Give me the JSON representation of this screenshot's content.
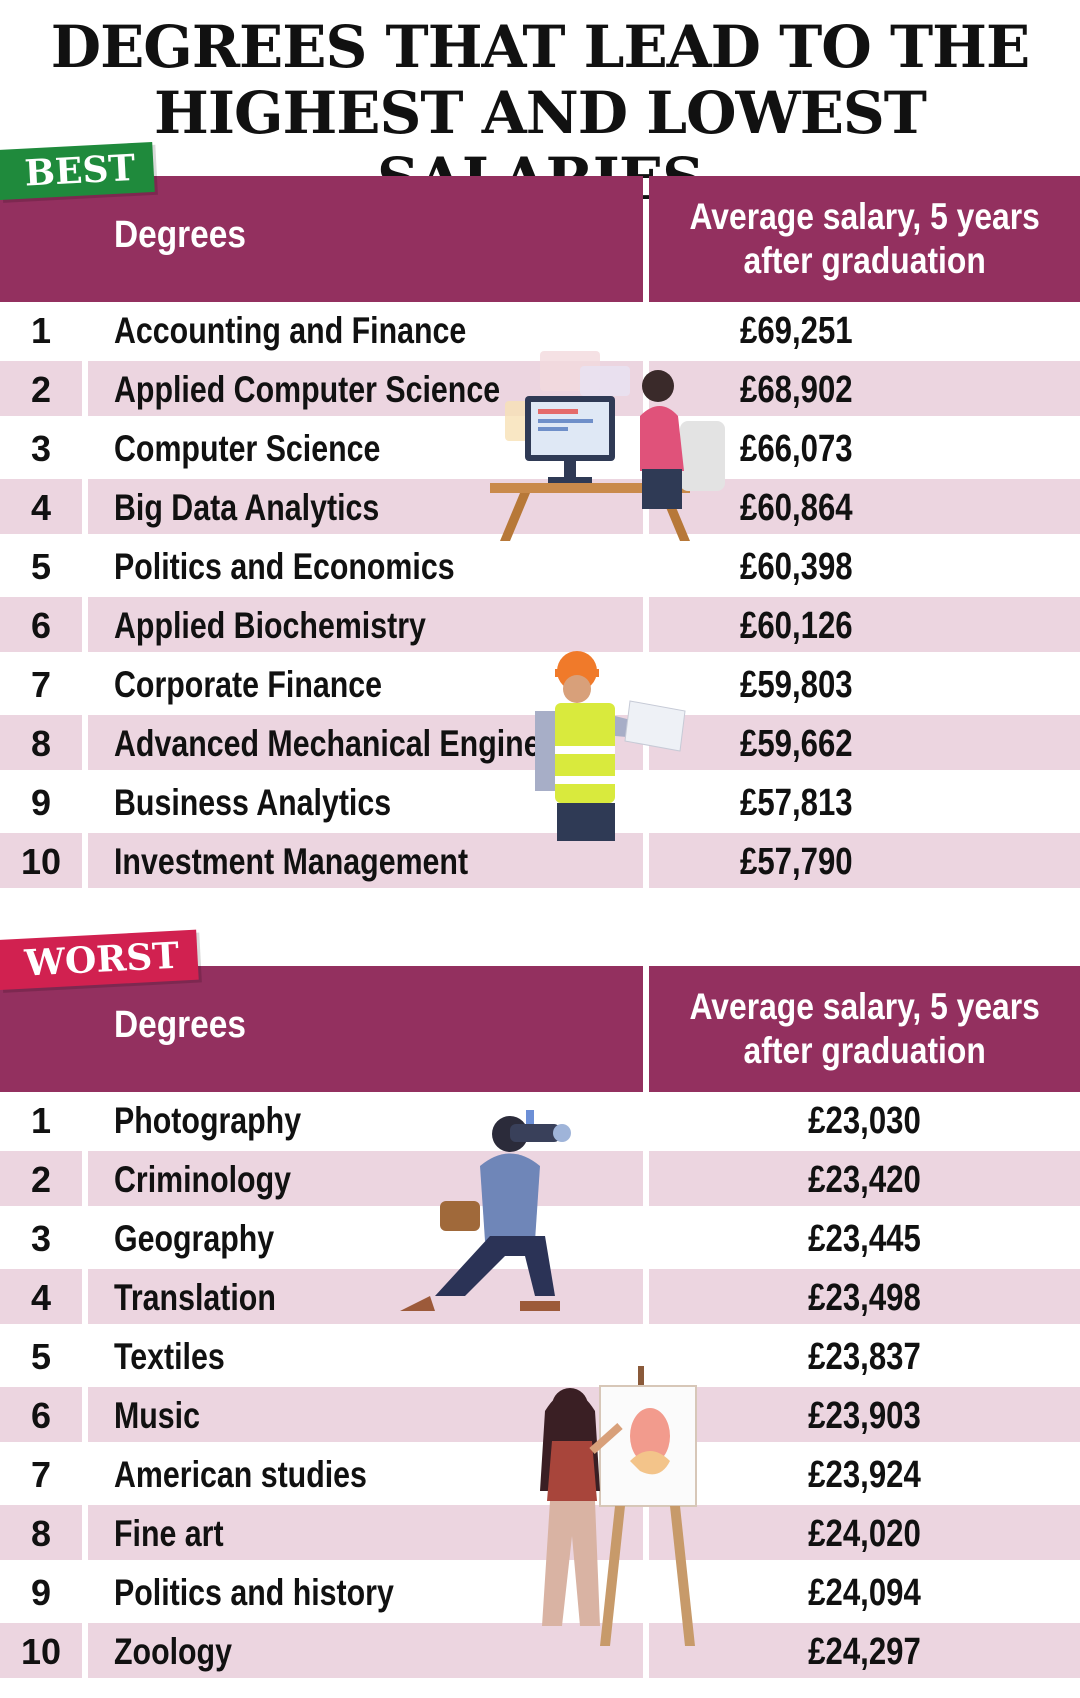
{
  "title_line1": "DEGREES THAT LEAD TO THE",
  "title_line2": "HIGHEST AND LOWEST SALARIES",
  "header": {
    "degrees_label": "Degrees",
    "salary_label_line1": "Average salary, 5 years",
    "salary_label_line2": "after graduation"
  },
  "best": {
    "badge": "BEST",
    "rows": [
      {
        "rank": "1",
        "degree": "Accounting and Finance",
        "salary": "£69,251"
      },
      {
        "rank": "2",
        "degree": "Applied Computer Science",
        "salary": "£68,902"
      },
      {
        "rank": "3",
        "degree": "Computer Science",
        "salary": "£66,073"
      },
      {
        "rank": "4",
        "degree": "Big Data Analytics",
        "salary": "£60,864"
      },
      {
        "rank": "5",
        "degree": "Politics and Economics",
        "salary": "£60,398"
      },
      {
        "rank": "6",
        "degree": "Applied Biochemistry",
        "salary": "£60,126"
      },
      {
        "rank": "7",
        "degree": "Corporate Finance",
        "salary": "£59,803"
      },
      {
        "rank": "8",
        "degree": "Advanced Mechanical Engineering",
        "salary": "£59,662"
      },
      {
        "rank": "9",
        "degree": "Business Analytics",
        "salary": "£57,813"
      },
      {
        "rank": "10",
        "degree": "Investment Management",
        "salary": "£57,790"
      }
    ]
  },
  "worst": {
    "badge": "WORST",
    "rows": [
      {
        "rank": "1",
        "degree": "Photography",
        "salary": "£23,030"
      },
      {
        "rank": "2",
        "degree": "Criminology",
        "salary": "£23,420"
      },
      {
        "rank": "3",
        "degree": "Geography",
        "salary": "£23,445"
      },
      {
        "rank": "4",
        "degree": "Translation",
        "salary": "£23,498"
      },
      {
        "rank": "5",
        "degree": "Textiles",
        "salary": "£23,837"
      },
      {
        "rank": "6",
        "degree": "Music",
        "salary": "£23,903"
      },
      {
        "rank": "7",
        "degree": "American studies",
        "salary": "£23,924"
      },
      {
        "rank": "8",
        "degree": "Fine art",
        "salary": "£24,020"
      },
      {
        "rank": "9",
        "degree": "Politics and history",
        "salary": "£24,094"
      },
      {
        "rank": "10",
        "degree": "Zoology",
        "salary": "£24,297"
      }
    ]
  },
  "chart_data": [
    {
      "type": "table",
      "title": "BEST",
      "columns": [
        "Degrees",
        "Average salary, 5 years after graduation"
      ],
      "categories": [
        "Accounting and Finance",
        "Applied Computer Science",
        "Computer Science",
        "Big Data Analytics",
        "Politics and Economics",
        "Applied Biochemistry",
        "Corporate Finance",
        "Advanced Mechanical Engineering",
        "Business Analytics",
        "Investment Management"
      ],
      "values": [
        69251,
        68902,
        66073,
        60864,
        60398,
        60126,
        59803,
        59662,
        57813,
        57790
      ]
    },
    {
      "type": "table",
      "title": "WORST",
      "columns": [
        "Degrees",
        "Average salary, 5 years after graduation"
      ],
      "categories": [
        "Photography",
        "Criminology",
        "Geography",
        "Translation",
        "Textiles",
        "Music",
        "American studies",
        "Fine art",
        "Politics and history",
        "Zoology"
      ],
      "values": [
        23030,
        23420,
        23445,
        23498,
        23837,
        23903,
        23924,
        24020,
        24094,
        24297
      ]
    }
  ],
  "colors": {
    "header_bg": "#93305f",
    "row_alt_bg": "#ecd5e0",
    "best_badge": "#1f8a3c",
    "worst_badge": "#d12150"
  }
}
